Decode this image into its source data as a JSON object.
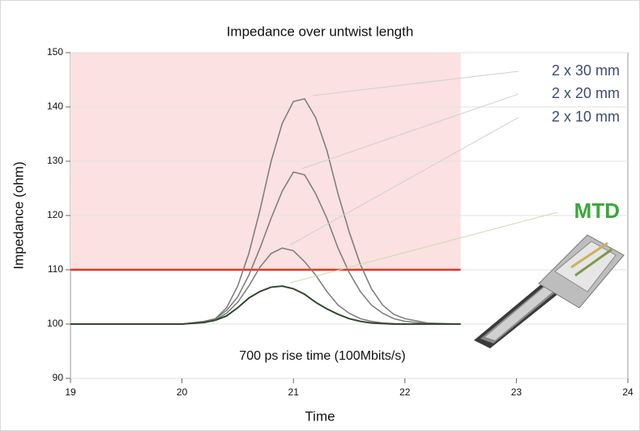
{
  "chart_data": {
    "type": "line",
    "title": "Impedance over untwist length",
    "xlabel": "Time",
    "ylabel": "Impedance (ohm)",
    "annotation": "700 ps rise time (100Mbits/s)",
    "x": [
      19,
      20,
      20.2,
      20.3,
      20.4,
      20.5,
      20.6,
      20.7,
      20.8,
      20.9,
      21,
      21.1,
      21.2,
      21.3,
      21.4,
      21.5,
      21.6,
      21.7,
      21.8,
      21.9,
      22,
      22.2,
      22.5
    ],
    "series": [
      {
        "name": "2 x 30 mm",
        "color": "#7a7a7a",
        "values": [
          100,
          100,
          100.5,
          101,
          103,
          107,
          113,
          121,
          130,
          137,
          141,
          141.5,
          138,
          132,
          124,
          117,
          111,
          106.5,
          103.5,
          101.8,
          101,
          100.2,
          100
        ]
      },
      {
        "name": "2 x 20 mm",
        "color": "#7a7a7a",
        "values": [
          100,
          100,
          100.4,
          101,
          102.5,
          105,
          109,
          114,
          119.5,
          124.5,
          128,
          127.5,
          124,
          119.5,
          114,
          109.5,
          106,
          103.5,
          102,
          101,
          100.5,
          100.1,
          100
        ]
      },
      {
        "name": "2 x 10 mm",
        "color": "#7a7a7a",
        "values": [
          100,
          100,
          100.3,
          100.8,
          102,
          104,
          107,
          110.5,
          113,
          114,
          113.5,
          111.5,
          109,
          106,
          103.5,
          102,
          101,
          100.5,
          100.2,
          100.1,
          100,
          100,
          100
        ]
      },
      {
        "name": "MTD",
        "color": "#2f4a2f",
        "values": [
          100,
          100,
          100.3,
          100.7,
          101.5,
          103,
          104.8,
          106,
          106.8,
          107,
          106.5,
          105.5,
          104,
          102.8,
          101.8,
          101,
          100.5,
          100.2,
          100.1,
          100,
          100,
          100,
          100
        ]
      }
    ],
    "threshold": {
      "value": 110,
      "x_end": 22.5,
      "color": "#e8321e",
      "fill": "#fbe1e1"
    },
    "xlim": [
      19,
      24
    ],
    "xticks": [
      19,
      20,
      21,
      22,
      23,
      24
    ],
    "ylim": [
      90,
      150
    ],
    "yticks": [
      90,
      100,
      110,
      120,
      130,
      140,
      150
    ],
    "grid": true
  }
}
